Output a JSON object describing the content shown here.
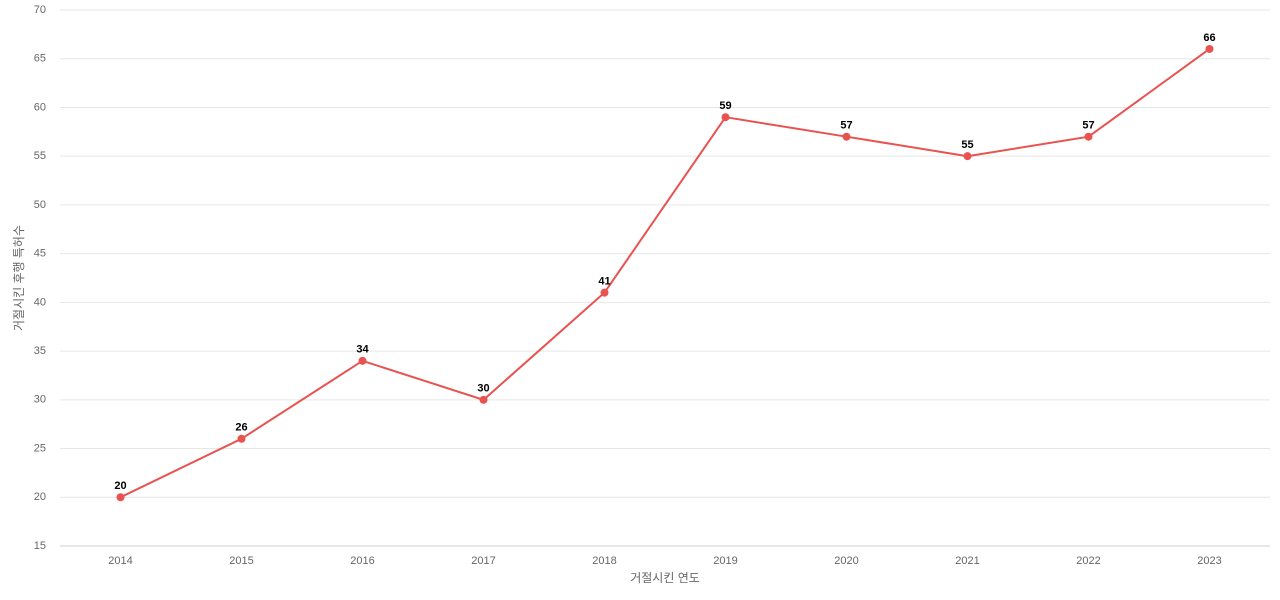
{
  "chart_data": {
    "type": "line",
    "x_label": "거절시킨 연도",
    "y_label": "거절시킨 후행 특허수",
    "categories": [
      "2014",
      "2015",
      "2016",
      "2017",
      "2018",
      "2019",
      "2020",
      "2021",
      "2022",
      "2023"
    ],
    "values": [
      20,
      26,
      34,
      30,
      41,
      59,
      57,
      55,
      57,
      66
    ],
    "color": "#e8524f",
    "ylim": [
      15,
      70
    ],
    "yticks": [
      15,
      20,
      25,
      30,
      35,
      40,
      45,
      50,
      55,
      60,
      65,
      70
    ],
    "grid": true
  }
}
